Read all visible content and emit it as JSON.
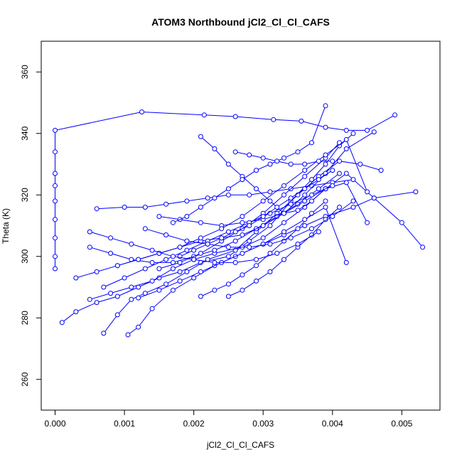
{
  "chart_data": {
    "type": "line",
    "title": "ATOM3 Northbound jCl2_Cl_Cl_CAFS",
    "xlabel": "jCl2_Cl_Cl_CAFS",
    "ylabel": "Theta (K)",
    "xlim": [
      -0.0002,
      0.00555
    ],
    "ylim": [
      250,
      370
    ],
    "xticks": [
      "0.000",
      "0.001",
      "0.002",
      "0.003",
      "0.004",
      "0.005"
    ],
    "yticks": [
      "260",
      "280",
      "300",
      "320",
      "340",
      "360"
    ],
    "marker": "open-circle",
    "color": "#0000ff",
    "series": [
      {
        "x": [
          0.0,
          0.0,
          0.0,
          0.0,
          0.0,
          0.0,
          0.0,
          0.0,
          0.0,
          0.00125,
          0.00215,
          0.0026,
          0.00315,
          0.00355,
          0.0039,
          0.0042,
          0.0045,
          0.0049
        ],
        "y": [
          296,
          300,
          306,
          312,
          318,
          323,
          327,
          334,
          341,
          347,
          346,
          345.5,
          344.5,
          344,
          342,
          341,
          341,
          346
        ]
      },
      {
        "x": [
          0.0001,
          0.0003,
          0.0006,
          0.0009,
          0.0012,
          0.0015,
          0.0018,
          0.0021,
          0.0025,
          0.0028,
          0.0031,
          0.0034,
          0.0037,
          0.0039,
          0.0041,
          0.0043
        ],
        "y": [
          278.5,
          282,
          285,
          287,
          290,
          293,
          295,
          298,
          300,
          305,
          310,
          318,
          325,
          330,
          336,
          340
        ]
      },
      {
        "x": [
          0.0007,
          0.0009,
          0.0011,
          0.0013,
          0.0016,
          0.0019,
          0.0022,
          0.0026,
          0.0029,
          0.0032,
          0.0035,
          0.0038,
          0.0041,
          0.0044,
          0.0047
        ],
        "y": [
          275,
          281,
          286,
          288,
          291,
          295,
          299,
          302,
          308,
          314,
          320,
          326,
          331,
          330,
          328
        ]
      },
      {
        "x": [
          0.00105,
          0.0012,
          0.0014,
          0.0017,
          0.002,
          0.0023,
          0.0026,
          0.003,
          0.0033,
          0.0036,
          0.0039,
          0.0043,
          0.0046,
          0.005,
          0.0053
        ],
        "y": [
          274.5,
          277,
          283,
          289,
          293,
          297,
          300,
          304,
          307,
          310,
          313,
          316,
          319,
          311,
          303
        ]
      },
      {
        "x": [
          0.0005,
          0.0008,
          0.0011,
          0.0014,
          0.0017,
          0.002,
          0.0023,
          0.0027,
          0.003,
          0.0033,
          0.0036,
          0.0039,
          0.0042,
          0.0046,
          0.0052
        ],
        "y": [
          286,
          288,
          290,
          292,
          296,
          299,
          301,
          303,
          306,
          311,
          316,
          322,
          327,
          319,
          321
        ]
      },
      {
        "x": [
          0.0006,
          0.001,
          0.0013,
          0.0016,
          0.0019,
          0.0022,
          0.0025,
          0.0028,
          0.0031,
          0.0034,
          0.0037,
          0.004,
          0.0043
        ],
        "y": [
          315.5,
          316,
          316,
          317,
          318,
          319,
          320,
          320,
          321,
          322,
          323,
          324,
          325
        ]
      },
      {
        "x": [
          0.0005,
          0.0008,
          0.0011,
          0.0014,
          0.0017,
          0.002,
          0.0023,
          0.0026,
          0.0029,
          0.0032,
          0.0035,
          0.0038,
          0.0041
        ],
        "y": [
          303,
          301,
          299,
          298,
          298,
          300,
          302,
          305,
          309,
          313,
          317,
          322,
          327
        ]
      },
      {
        "x": [
          0.0015,
          0.0018,
          0.0021,
          0.0024,
          0.0027,
          0.003,
          0.0033,
          0.0036,
          0.0039,
          0.0042,
          0.0045
        ],
        "y": [
          313,
          312,
          311,
          310,
          311,
          312,
          314,
          318,
          322,
          324,
          311
        ]
      },
      {
        "x": [
          0.0021,
          0.0023,
          0.0025,
          0.0027,
          0.0029,
          0.0031,
          0.0033,
          0.0035,
          0.0037,
          0.0039
        ],
        "y": [
          287,
          289,
          291,
          294,
          297,
          301,
          305,
          309,
          314,
          318
        ]
      },
      {
        "x": [
          0.0025,
          0.0027,
          0.0029,
          0.0031,
          0.0033,
          0.0035,
          0.0037,
          0.0039,
          0.0041
        ],
        "y": [
          287,
          289,
          292,
          295,
          299,
          303,
          307,
          312,
          316
        ]
      },
      {
        "x": [
          0.0012,
          0.0015,
          0.0018,
          0.0021,
          0.0024,
          0.0027,
          0.003,
          0.0033,
          0.0036,
          0.0039,
          0.0042
        ],
        "y": [
          286.5,
          289,
          292,
          295,
          298,
          301,
          304,
          308,
          312,
          316,
          298
        ]
      },
      {
        "x": [
          0.0021,
          0.0023,
          0.0025,
          0.0027,
          0.0029,
          0.0031,
          0.0033,
          0.0035,
          0.0037,
          0.0039
        ],
        "y": [
          339,
          335,
          330,
          326,
          322,
          318,
          314,
          315,
          318,
          322
        ]
      },
      {
        "x": [
          0.0015,
          0.0018,
          0.0021,
          0.0024,
          0.0027,
          0.003,
          0.0033,
          0.0036,
          0.0039,
          0.0041
        ],
        "y": [
          296,
          298,
          301,
          305,
          309,
          314,
          320,
          326,
          332,
          337
        ]
      },
      {
        "x": [
          0.0003,
          0.0006,
          0.0009,
          0.0012,
          0.0015,
          0.0018,
          0.0021,
          0.0024,
          0.0027,
          0.003,
          0.0033,
          0.0036,
          0.0039,
          0.0042,
          0.0046
        ],
        "y": [
          293,
          295,
          297,
          299,
          301,
          303,
          305,
          306,
          307,
          310,
          314,
          320,
          327,
          335,
          340.5
        ]
      },
      {
        "x": [
          0.0009,
          0.0012,
          0.0015,
          0.0018,
          0.0021,
          0.0024,
          0.0027,
          0.003,
          0.0033,
          0.0036,
          0.0039,
          0.0042,
          0.0045
        ],
        "y": [
          297,
          299,
          301,
          303,
          306,
          309,
          313,
          318,
          323,
          328,
          333,
          338,
          321
        ]
      },
      {
        "x": [
          0.0007,
          0.001,
          0.0013,
          0.0016,
          0.0019,
          0.0022,
          0.0025,
          0.0028,
          0.0031,
          0.0034,
          0.0037,
          0.004
        ],
        "y": [
          290,
          293,
          296,
          299,
          302,
          305,
          308,
          311,
          314,
          317,
          320,
          323
        ]
      },
      {
        "x": [
          0.0017,
          0.0019,
          0.0021,
          0.0023,
          0.0025,
          0.0027,
          0.0029,
          0.0031,
          0.0033,
          0.0035,
          0.0037,
          0.0039
        ],
        "y": [
          311,
          313,
          316,
          319,
          322,
          325,
          328,
          330,
          332,
          334,
          337,
          349
        ]
      },
      {
        "x": [
          0.0026,
          0.0028,
          0.003,
          0.0032,
          0.0034,
          0.0036,
          0.0038,
          0.004
        ],
        "y": [
          334,
          333,
          332,
          331,
          330,
          330,
          331,
          331
        ]
      },
      {
        "x": [
          0.0018,
          0.002,
          0.0022,
          0.0024,
          0.0026,
          0.0028,
          0.003,
          0.0032,
          0.0034,
          0.0036,
          0.0038,
          0.004
        ],
        "y": [
          300,
          302,
          304,
          306,
          308,
          310,
          313,
          316,
          319,
          322,
          325,
          328
        ]
      },
      {
        "x": [
          0.0013,
          0.0016,
          0.0019,
          0.0022,
          0.0025,
          0.0028,
          0.0031,
          0.0034,
          0.0037,
          0.004,
          0.0043
        ],
        "y": [
          309,
          307,
          305,
          304,
          303,
          303,
          304,
          306,
          309,
          313,
          318
        ]
      },
      {
        "x": [
          0.0005,
          0.0008,
          0.0011,
          0.0014,
          0.0017,
          0.002,
          0.0023,
          0.0026,
          0.0029,
          0.0032,
          0.0035,
          0.0038
        ],
        "y": [
          308,
          306,
          304,
          302,
          300,
          299,
          298,
          298,
          299,
          301,
          304,
          308
        ]
      }
    ]
  }
}
